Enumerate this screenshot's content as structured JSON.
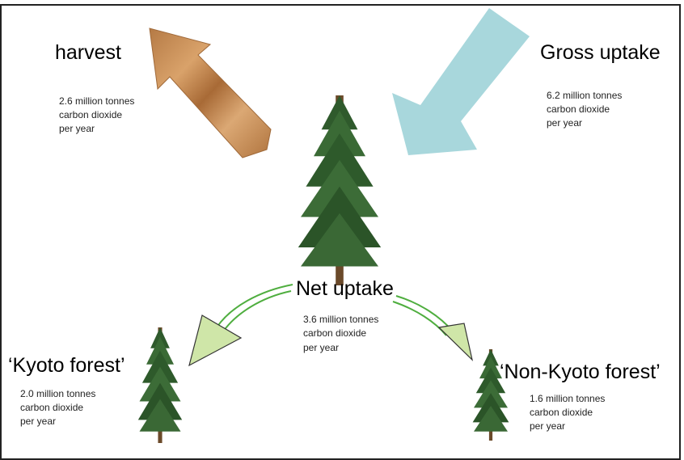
{
  "nodes": [
    {
      "label": "harvest",
      "lines": [
        "2.6 million tonnes",
        "carbon dioxide",
        "per year"
      ]
    },
    {
      "label": "Gross uptake",
      "lines": [
        "6.2 million tonnes",
        "carbon dioxide",
        "per year"
      ]
    },
    {
      "label": "Net uptake",
      "lines": [
        "3.6 million tonnes",
        "carbon dioxide",
        "per year"
      ]
    },
    {
      "label": "‘Kyoto forest’",
      "lines": [
        "2.0 million tonnes",
        "carbon dioxide",
        "per year"
      ]
    },
    {
      "label": "‘Non-Kyoto forest’",
      "lines": [
        "1.6 million tonnes",
        "carbon dioxide",
        "per year"
      ]
    }
  ]
}
